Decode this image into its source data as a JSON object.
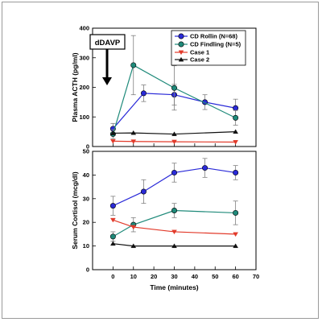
{
  "colors": {
    "cd_rollin": "#2a2ad8",
    "cd_findling": "#1f8a7a",
    "case1": "#e23a2a",
    "case2": "#111111",
    "axis": "#000000",
    "error": "#7f7f7f"
  },
  "annotation": {
    "label": "dDAVP"
  },
  "chart_data": [
    {
      "type": "line",
      "ylabel": "Plasma ACTH (pg/ml)",
      "ylim": [
        0,
        400
      ],
      "yticks": [
        0,
        100,
        200,
        300,
        400
      ],
      "xlim": [
        -10,
        70
      ],
      "legend_placement": "top-right",
      "grid": false,
      "series": [
        {
          "name": "CD Rollin (N=68)",
          "marker": "circle",
          "color": "#2a2ad8",
          "x": [
            0,
            15,
            30,
            45,
            60
          ],
          "y": [
            60,
            180,
            175,
            150,
            130
          ],
          "err": [
            18,
            28,
            35,
            25,
            30
          ]
        },
        {
          "name": "CD Findling (N=5)",
          "marker": "circle",
          "color": "#1f8a7a",
          "x": [
            0,
            10,
            30,
            60
          ],
          "y": [
            42,
            275,
            198,
            97
          ],
          "err": [
            15,
            100,
            75,
            25
          ]
        },
        {
          "name": "Case 1",
          "marker": "triangle-down",
          "color": "#e23a2a",
          "x": [
            0,
            10,
            30,
            60
          ],
          "y": [
            18,
            17,
            16,
            15
          ],
          "err": []
        },
        {
          "name": "Case 2",
          "marker": "triangle-up",
          "color": "#111111",
          "x": [
            0,
            10,
            30,
            60
          ],
          "y": [
            45,
            46,
            42,
            50
          ],
          "err": []
        }
      ]
    },
    {
      "type": "line",
      "ylabel": "Serum Cortisol (mcg/dl)",
      "xlabel": "Time (minutes)",
      "ylim": [
        0,
        50
      ],
      "yticks": [
        0,
        10,
        20,
        30,
        40,
        50
      ],
      "xlim": [
        -10,
        70
      ],
      "xticks": [
        0,
        10,
        20,
        30,
        40,
        50,
        60,
        70
      ],
      "grid": false,
      "series": [
        {
          "name": "CD Rollin (N=68)",
          "marker": "circle",
          "color": "#2a2ad8",
          "x": [
            0,
            15,
            30,
            45,
            60
          ],
          "y": [
            27,
            33,
            41,
            43,
            41
          ],
          "err": [
            4,
            5,
            4,
            4,
            3
          ]
        },
        {
          "name": "CD Findling (N=5)",
          "marker": "circle",
          "color": "#1f8a7a",
          "x": [
            0,
            10,
            30,
            60
          ],
          "y": [
            14,
            19,
            25,
            24
          ],
          "err": [
            2,
            3,
            3,
            5
          ]
        },
        {
          "name": "Case 1",
          "marker": "triangle-down",
          "color": "#e23a2a",
          "x": [
            0,
            10,
            30,
            60
          ],
          "y": [
            21,
            18,
            16,
            15
          ],
          "err": []
        },
        {
          "name": "Case 2",
          "marker": "triangle-up",
          "color": "#111111",
          "x": [
            0,
            10,
            30,
            60
          ],
          "y": [
            11,
            10,
            10,
            10
          ],
          "err": []
        }
      ]
    }
  ]
}
